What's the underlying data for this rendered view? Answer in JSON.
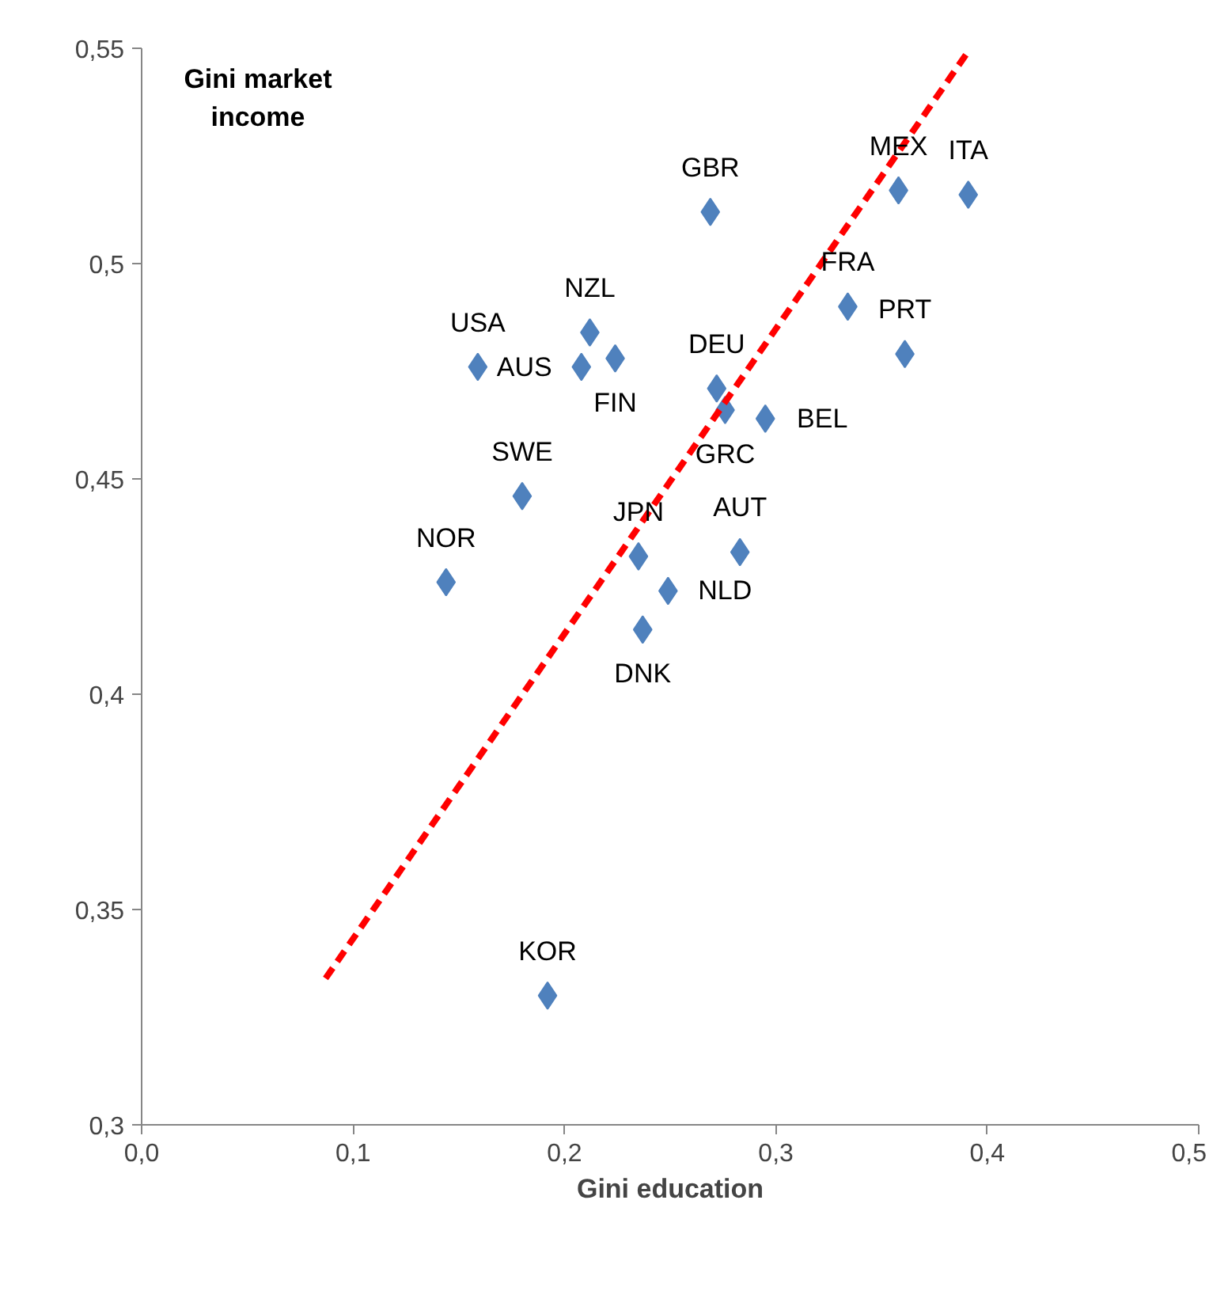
{
  "chart_data": {
    "type": "scatter",
    "ylabel": "Gini market income",
    "xlabel": "Gini education",
    "xlim": [
      0,
      0.5
    ],
    "xticks": [
      {
        "value": 0,
        "label": "0,0"
      },
      {
        "value": 0.1,
        "label": "0,1"
      },
      {
        "value": 0.2,
        "label": "0,2"
      },
      {
        "value": 0.3,
        "label": "0,3"
      },
      {
        "value": 0.4,
        "label": "0,4"
      },
      {
        "value": 0.5,
        "label": "0,5"
      }
    ],
    "ylim": [
      0.3,
      0.55
    ],
    "yticks": [
      {
        "value": 0.3,
        "label": "0,3"
      },
      {
        "value": 0.35,
        "label": "0,35"
      },
      {
        "value": 0.4,
        "label": "0,4"
      },
      {
        "value": 0.45,
        "label": "0,45"
      },
      {
        "value": 0.5,
        "label": "0,5"
      },
      {
        "value": 0.55,
        "label": "0,55"
      }
    ],
    "grid": false,
    "series": [
      {
        "marker": "diamond",
        "color": "#4f81bd",
        "x": [
          0.159,
          0.212,
          0.224,
          0.208,
          0.269,
          0.358,
          0.391,
          0.334,
          0.361,
          0.272,
          0.276,
          0.295,
          0.18,
          0.144,
          0.235,
          0.249,
          0.237,
          0.283,
          0.192
        ],
        "values": [
          0.476,
          0.484,
          0.478,
          0.476,
          0.512,
          0.517,
          0.516,
          0.49,
          0.479,
          0.471,
          0.466,
          0.464,
          0.446,
          0.426,
          0.432,
          0.424,
          0.415,
          0.433,
          0.33
        ]
      },
      {
        "type": "line",
        "color": "#ff0000",
        "line_style": "dashed",
        "x": [
          0.087,
          0.392
        ],
        "values": [
          0.334,
          0.55
        ]
      }
    ],
    "annotations": [
      {
        "text": "USA",
        "x": 0.159,
        "y": 0.476
      },
      {
        "text": "NZL",
        "x": 0.212,
        "y": 0.484
      },
      {
        "text": "FIN",
        "x": 0.224,
        "y": 0.478
      },
      {
        "text": "AUS",
        "x": 0.208,
        "y": 0.476
      },
      {
        "text": "GBR",
        "x": 0.269,
        "y": 0.512
      },
      {
        "text": "MEX",
        "x": 0.358,
        "y": 0.517
      },
      {
        "text": "ITA",
        "x": 0.391,
        "y": 0.516
      },
      {
        "text": "FRA",
        "x": 0.334,
        "y": 0.49
      },
      {
        "text": "PRT",
        "x": 0.361,
        "y": 0.479
      },
      {
        "text": "DEU",
        "x": 0.272,
        "y": 0.471
      },
      {
        "text": "GRC",
        "x": 0.276,
        "y": 0.466
      },
      {
        "text": "BEL",
        "x": 0.295,
        "y": 0.464
      },
      {
        "text": "SWE",
        "x": 0.18,
        "y": 0.446
      },
      {
        "text": "NOR",
        "x": 0.144,
        "y": 0.426
      },
      {
        "text": "JPN",
        "x": 0.235,
        "y": 0.432
      },
      {
        "text": "NLD",
        "x": 0.249,
        "y": 0.424
      },
      {
        "text": "DNK",
        "x": 0.237,
        "y": 0.415
      },
      {
        "text": "AUT",
        "x": 0.283,
        "y": 0.433
      },
      {
        "text": "KOR",
        "x": 0.192,
        "y": 0.33
      }
    ]
  }
}
